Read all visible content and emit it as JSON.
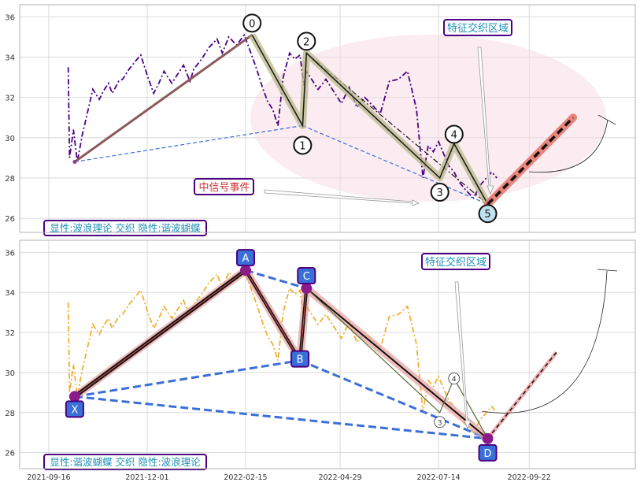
{
  "chart_data": [
    {
      "type": "line",
      "panel": "top",
      "ylim": [
        25.3,
        36.6
      ],
      "yticks": [
        26,
        28,
        30,
        32,
        34,
        36
      ],
      "grid": true,
      "background_colors": {
        "plot_bg": "#ffffff",
        "grid": "#cccccc",
        "frame": "#b0b0b0"
      },
      "price_series": {
        "color": "#4b0082",
        "style": "dash-dot",
        "x": [
          "2021-10-01",
          "2021-10-02",
          "2021-10-05",
          "2021-10-08",
          "2021-10-12",
          "2021-10-15",
          "2021-10-20",
          "2021-10-25",
          "2021-10-28",
          "2021-11-01",
          "2021-11-04",
          "2021-11-09",
          "2021-11-12",
          "2021-11-17",
          "2021-11-22",
          "2021-11-26",
          "2021-12-01",
          "2021-12-06",
          "2021-12-10",
          "2021-12-14",
          "2021-12-20",
          "2021-12-24",
          "2021-12-29",
          "2022-01-03",
          "2022-01-06",
          "2022-01-12",
          "2022-01-18",
          "2022-01-24",
          "2022-01-28",
          "2022-02-02",
          "2022-02-08",
          "2022-02-14",
          "2022-02-18",
          "2022-02-23",
          "2022-02-28",
          "2022-03-04",
          "2022-03-08",
          "2022-03-12",
          "2022-03-16",
          "2022-03-21",
          "2022-03-25",
          "2022-03-29",
          "2022-04-01",
          "2022-04-03",
          "2022-04-06",
          "2022-04-12",
          "2022-04-18",
          "2022-04-25",
          "2022-04-30",
          "2022-05-06",
          "2022-05-12",
          "2022-05-18",
          "2022-05-24",
          "2022-05-30",
          "2022-06-06",
          "2022-06-13",
          "2022-06-20",
          "2022-06-27",
          "2022-07-02",
          "2022-07-06",
          "2022-07-10",
          "2022-07-14",
          "2022-07-18",
          "2022-07-22",
          "2022-07-26",
          "2022-07-30",
          "2022-08-04",
          "2022-08-10",
          "2022-08-14",
          "2022-08-16",
          "2022-08-20",
          "2022-08-24",
          "2022-08-28"
        ],
        "y": [
          33.5,
          29.0,
          30.4,
          28.8,
          30.2,
          31.0,
          32.4,
          31.9,
          32.3,
          32.7,
          32.2,
          32.8,
          32.9,
          33.4,
          33.8,
          34.1,
          33.1,
          32.2,
          32.7,
          33.3,
          32.7,
          33.1,
          33.6,
          32.8,
          33.4,
          33.9,
          34.5,
          34.9,
          34.2,
          35.0,
          34.6,
          35.1,
          34.4,
          33.5,
          32.5,
          31.8,
          31.4,
          30.6,
          33.0,
          34.2,
          33.9,
          34.1,
          32.6,
          33.3,
          33.0,
          32.4,
          32.9,
          32.2,
          31.7,
          32.5,
          31.5,
          32.0,
          31.6,
          31.2,
          32.8,
          32.9,
          33.3,
          31.4,
          28.0,
          29.6,
          29.3,
          29.8,
          29.2,
          28.6,
          28.3,
          27.8,
          27.4,
          27.0,
          27.5,
          27.7,
          28.0,
          28.3,
          28.0
        ]
      },
      "wave_points": [
        {
          "label": "0",
          "x": "2022-02-20",
          "y": 35.1
        },
        {
          "label": "1",
          "x": "2022-03-31",
          "y": 30.6
        },
        {
          "label": "2",
          "x": "2022-04-03",
          "y": 34.2
        },
        {
          "label": "3",
          "x": "2022-07-15",
          "y": 28.0
        },
        {
          "label": "4",
          "x": "2022-07-26",
          "y": 29.7
        },
        {
          "label": "5",
          "x": "2022-08-21",
          "y": 26.7
        }
      ],
      "start_point": {
        "x": "2021-10-06",
        "y": 28.8
      },
      "projection_end": {
        "x": "2022-10-26",
        "y": 31.0
      },
      "annotations": {
        "crossing_region": "特征交织区域",
        "mid_signal": "中信号事件",
        "footer": "显性:波浪理论 交织 隐性:谐波蝴蝶"
      },
      "label_color": "#1e90b8",
      "box_edge_color": "#4b0082",
      "mid_signal_color": "#cc3333"
    },
    {
      "type": "line",
      "panel": "bottom",
      "ylim": [
        25.2,
        36.6
      ],
      "yticks": [
        26,
        28,
        30,
        32,
        34,
        36
      ],
      "grid": true,
      "price_series": {
        "color": "#f0b030",
        "style": "dash-dot",
        "x": [
          "2021-10-01",
          "2021-10-02",
          "2021-10-05",
          "2021-10-08",
          "2021-10-12",
          "2021-10-15",
          "2021-10-20",
          "2021-10-25",
          "2021-10-28",
          "2021-11-01",
          "2021-11-04",
          "2021-11-09",
          "2021-11-12",
          "2021-11-17",
          "2021-11-22",
          "2021-11-26",
          "2021-12-01",
          "2021-12-06",
          "2021-12-10",
          "2021-12-14",
          "2021-12-20",
          "2021-12-24",
          "2021-12-29",
          "2022-01-03",
          "2022-01-06",
          "2022-01-12",
          "2022-01-18",
          "2022-01-24",
          "2022-01-28",
          "2022-02-02",
          "2022-02-08",
          "2022-02-14",
          "2022-02-18",
          "2022-02-23",
          "2022-02-28",
          "2022-03-04",
          "2022-03-08",
          "2022-03-12",
          "2022-03-16",
          "2022-03-21",
          "2022-03-25",
          "2022-03-29",
          "2022-04-01",
          "2022-04-03",
          "2022-04-06",
          "2022-04-12",
          "2022-04-18",
          "2022-04-25",
          "2022-04-30",
          "2022-05-06",
          "2022-05-12",
          "2022-05-18",
          "2022-05-24",
          "2022-05-30",
          "2022-06-06",
          "2022-06-13",
          "2022-06-20",
          "2022-06-27",
          "2022-07-02",
          "2022-07-06",
          "2022-07-10",
          "2022-07-14",
          "2022-07-18",
          "2022-07-22",
          "2022-07-26",
          "2022-07-30",
          "2022-08-04",
          "2022-08-10",
          "2022-08-14",
          "2022-08-16",
          "2022-08-20",
          "2022-08-24",
          "2022-08-28"
        ],
        "y": [
          33.5,
          29.0,
          30.4,
          28.8,
          30.2,
          31.0,
          32.4,
          31.9,
          32.3,
          32.7,
          32.2,
          32.8,
          32.9,
          33.4,
          33.8,
          34.1,
          33.1,
          32.2,
          32.7,
          33.3,
          32.7,
          33.1,
          33.6,
          32.8,
          33.4,
          33.9,
          34.5,
          34.9,
          34.2,
          35.0,
          34.6,
          35.1,
          34.4,
          33.5,
          32.5,
          31.8,
          31.4,
          30.6,
          33.0,
          34.2,
          33.9,
          34.1,
          32.6,
          33.3,
          33.0,
          32.4,
          32.9,
          32.2,
          31.7,
          32.5,
          31.5,
          32.0,
          31.6,
          31.2,
          32.8,
          32.9,
          33.3,
          31.4,
          28.0,
          29.6,
          29.3,
          29.8,
          29.2,
          28.6,
          28.3,
          27.8,
          27.4,
          27.0,
          27.5,
          27.7,
          28.0,
          28.3,
          28.0
        ]
      },
      "harmonic_points": [
        {
          "label": "X",
          "x": "2021-10-06",
          "y": 28.8
        },
        {
          "label": "A",
          "x": "2022-02-15",
          "y": 35.1
        },
        {
          "label": "B",
          "x": "2022-03-29",
          "y": 30.6
        },
        {
          "label": "C",
          "x": "2022-04-03",
          "y": 34.2
        },
        {
          "label": "D",
          "x": "2022-08-21",
          "y": 26.7
        }
      ],
      "minor_wave_points": [
        {
          "label": "3",
          "x": "2022-07-15",
          "y": 28.0
        },
        {
          "label": "4",
          "x": "2022-07-26",
          "y": 29.7
        }
      ],
      "projection_end": {
        "x": "2022-10-13",
        "y": 31.0
      },
      "annotations": {
        "crossing_region": "特征交织区域",
        "footer": "显性:谐波蝴蝶 交织 隐性:波浪理论"
      },
      "label_color": "#1e90b8",
      "point_box_color": "#3a6fd8"
    }
  ],
  "x_axis": {
    "tick_labels": [
      "2021-09-16",
      "2021-12-01",
      "2022-02-15",
      "2022-04-29",
      "2022-07-14",
      "2022-09-22"
    ]
  }
}
